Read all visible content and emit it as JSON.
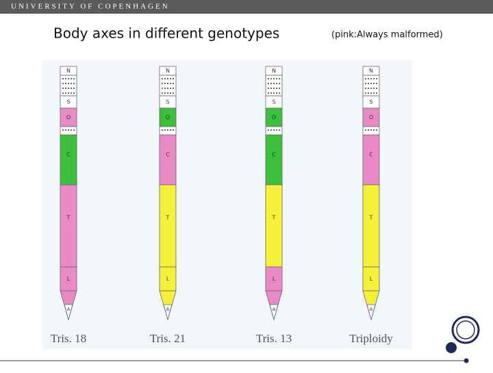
{
  "header": {
    "title": "UNIVERSITY OF COPENHAGEN"
  },
  "slide": {
    "title": "Body axes in different genotypes",
    "subtitle": "(pink:Always malformed)"
  },
  "colors": {
    "white": "#ffffff",
    "pink": "#e98ac6",
    "green": "#3cbf3c",
    "yellow": "#f5f03a"
  },
  "columns": [
    {
      "label": "Tris. 18",
      "segments": [
        {
          "text": "N",
          "color": "white"
        },
        {
          "text": "S",
          "color": "white"
        },
        {
          "text": "O",
          "color": "pink"
        },
        {
          "text": "C",
          "color": "green"
        },
        {
          "text": "T",
          "color": "pink"
        },
        {
          "text": "L",
          "color": "pink"
        },
        {
          "text": "A",
          "color": "white"
        }
      ]
    },
    {
      "label": "Tris. 21",
      "segments": [
        {
          "text": "N",
          "color": "white"
        },
        {
          "text": "S",
          "color": "white"
        },
        {
          "text": "O",
          "color": "green"
        },
        {
          "text": "C",
          "color": "pink"
        },
        {
          "text": "T",
          "color": "yellow"
        },
        {
          "text": "L",
          "color": "yellow"
        },
        {
          "text": "A",
          "color": "white"
        }
      ]
    },
    {
      "label": "Tris. 13",
      "segments": [
        {
          "text": "N",
          "color": "white"
        },
        {
          "text": "S",
          "color": "white"
        },
        {
          "text": "O",
          "color": "green"
        },
        {
          "text": "C",
          "color": "green"
        },
        {
          "text": "T",
          "color": "yellow"
        },
        {
          "text": "L",
          "color": "pink"
        },
        {
          "text": "A",
          "color": "white"
        }
      ]
    },
    {
      "label": "Triploidy",
      "segments": [
        {
          "text": "N",
          "color": "white"
        },
        {
          "text": "S",
          "color": "white"
        },
        {
          "text": "O",
          "color": "pink"
        },
        {
          "text": "C",
          "color": "pink"
        },
        {
          "text": "T",
          "color": "yellow"
        },
        {
          "text": "L",
          "color": "yellow"
        },
        {
          "text": "A",
          "color": "white"
        }
      ]
    }
  ]
}
